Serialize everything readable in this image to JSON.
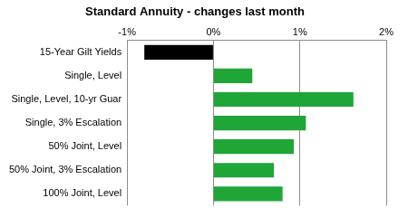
{
  "chart_data": {
    "type": "bar",
    "orientation": "horizontal",
    "title": "Standard Annuity - changes last month",
    "categories": [
      "15-Year Gilt Yields",
      "Single, Level",
      "Single, Level, 10-yr Guar",
      "Single, 3% Escalation",
      "50% Joint, Level",
      "50% Joint, 3% Escalation",
      "100% Joint, Level"
    ],
    "values": [
      -0.8,
      0.45,
      1.62,
      1.07,
      0.93,
      0.7,
      0.8
    ],
    "colors": [
      "#000000",
      "#1fa637",
      "#1fa637",
      "#1fa637",
      "#1fa637",
      "#1fa637",
      "#1fa637"
    ],
    "xlim": [
      -1,
      2
    ],
    "xticks": [
      {
        "value": -1,
        "label": "-1%"
      },
      {
        "value": 0,
        "label": "0%"
      },
      {
        "value": 1,
        "label": "1%"
      },
      {
        "value": 2,
        "label": "2%"
      }
    ],
    "grid": true
  }
}
